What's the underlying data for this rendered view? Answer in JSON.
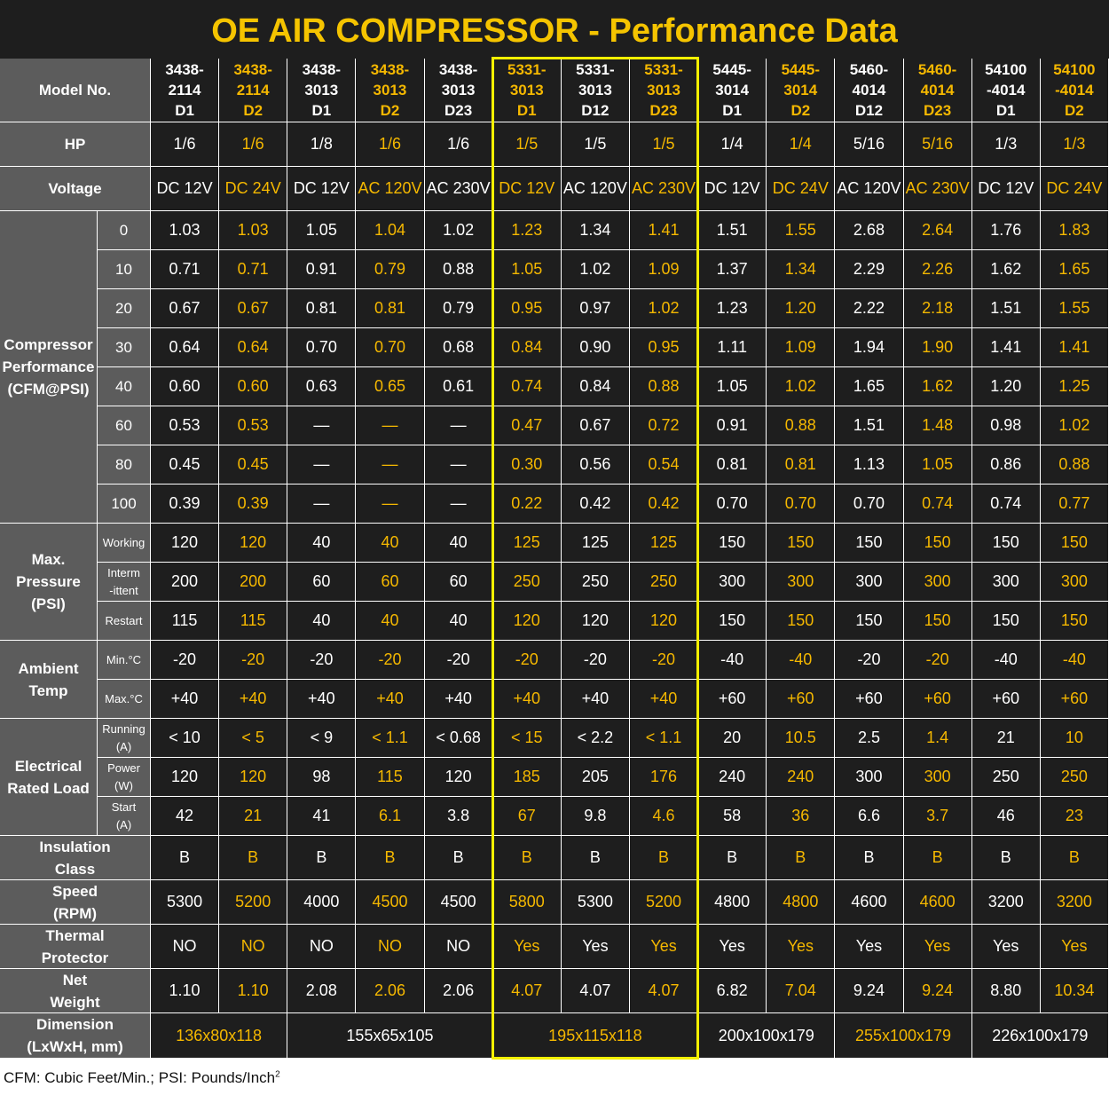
{
  "title": "OE AIR COMPRESSOR - Performance Data",
  "accent_color": "#f5b800",
  "highlight_color": "#f5f000",
  "header_bg": "#5c5c5c",
  "table_bg": "#1e1e1e",
  "models": [
    [
      "3438-",
      "2114",
      "D1"
    ],
    [
      "3438-",
      "2114",
      "D2"
    ],
    [
      "3438-",
      "3013",
      "D1"
    ],
    [
      "3438-",
      "3013",
      "D2"
    ],
    [
      "3438-",
      "3013",
      "D23"
    ],
    [
      "5331-",
      "3013",
      "D1"
    ],
    [
      "5331-",
      "3013",
      "D12"
    ],
    [
      "5331-",
      "3013",
      "D23"
    ],
    [
      "5445-",
      "3014",
      "D1"
    ],
    [
      "5445-",
      "3014",
      "D2"
    ],
    [
      "5460-",
      "4014",
      "D12"
    ],
    [
      "5460-",
      "4014",
      "D23"
    ],
    [
      "54100",
      "-4014",
      "D1"
    ],
    [
      "54100",
      "-4014",
      "D2"
    ]
  ],
  "yellow_columns": [
    1,
    3,
    5,
    7,
    9,
    11,
    13
  ],
  "labels": {
    "model": "Model No.",
    "hp": "HP",
    "voltage": "Voltage",
    "compressor": [
      "Compressor",
      "Performance",
      "(CFM@PSI)"
    ],
    "pressure": [
      "Max.",
      "Pressure",
      "(PSI)"
    ],
    "ambient": [
      "Ambient",
      "Temp"
    ],
    "electrical": [
      "Electrical",
      "Rated Load"
    ],
    "insulation": [
      "Insulation",
      "Class"
    ],
    "speed": [
      "Speed",
      "(RPM)"
    ],
    "thermal": [
      "Thermal",
      "Protector"
    ],
    "weight": [
      "Net",
      "Weight"
    ],
    "dimension": [
      "Dimension",
      "(LxWxH, mm)"
    ]
  },
  "hp": [
    "1/6",
    "1/6",
    "1/8",
    "1/6",
    "1/6",
    "1/5",
    "1/5",
    "1/5",
    "1/4",
    "1/4",
    "5/16",
    "5/16",
    "1/3",
    "1/3"
  ],
  "voltage": [
    "DC 12V",
    "DC 24V",
    "DC 12V",
    "AC 120V",
    "AC 230V",
    "DC 12V",
    "AC 120V",
    "AC 230V",
    "DC 12V",
    "DC 24V",
    "AC 120V",
    "AC 230V",
    "DC 12V",
    "DC 24V"
  ],
  "performance": [
    {
      "psi": "0",
      "values": [
        "1.03",
        "1.03",
        "1.05",
        "1.04",
        "1.02",
        "1.23",
        "1.34",
        "1.41",
        "1.51",
        "1.55",
        "2.68",
        "2.64",
        "1.76",
        "1.83"
      ]
    },
    {
      "psi": "10",
      "values": [
        "0.71",
        "0.71",
        "0.91",
        "0.79",
        "0.88",
        "1.05",
        "1.02",
        "1.09",
        "1.37",
        "1.34",
        "2.29",
        "2.26",
        "1.62",
        "1.65"
      ]
    },
    {
      "psi": "20",
      "values": [
        "0.67",
        "0.67",
        "0.81",
        "0.81",
        "0.79",
        "0.95",
        "0.97",
        "1.02",
        "1.23",
        "1.20",
        "2.22",
        "2.18",
        "1.51",
        "1.55"
      ]
    },
    {
      "psi": "30",
      "values": [
        "0.64",
        "0.64",
        "0.70",
        "0.70",
        "0.68",
        "0.84",
        "0.90",
        "0.95",
        "1.11",
        "1.09",
        "1.94",
        "1.90",
        "1.41",
        "1.41"
      ]
    },
    {
      "psi": "40",
      "values": [
        "0.60",
        "0.60",
        "0.63",
        "0.65",
        "0.61",
        "0.74",
        "0.84",
        "0.88",
        "1.05",
        "1.02",
        "1.65",
        "1.62",
        "1.20",
        "1.25"
      ]
    },
    {
      "psi": "60",
      "values": [
        "0.53",
        "0.53",
        "—",
        "—",
        "—",
        "0.47",
        "0.67",
        "0.72",
        "0.91",
        "0.88",
        "1.51",
        "1.48",
        "0.98",
        "1.02"
      ]
    },
    {
      "psi": "80",
      "values": [
        "0.45",
        "0.45",
        "—",
        "—",
        "—",
        "0.30",
        "0.56",
        "0.54",
        "0.81",
        "0.81",
        "1.13",
        "1.05",
        "0.86",
        "0.88"
      ]
    },
    {
      "psi": "100",
      "values": [
        "0.39",
        "0.39",
        "—",
        "—",
        "—",
        "0.22",
        "0.42",
        "0.42",
        "0.70",
        "0.70",
        "0.70",
        "0.74",
        "0.74",
        "0.77"
      ]
    }
  ],
  "pressure": [
    {
      "label": [
        "Working"
      ],
      "values": [
        "120",
        "120",
        "40",
        "40",
        "40",
        "125",
        "125",
        "125",
        "150",
        "150",
        "150",
        "150",
        "150",
        "150"
      ]
    },
    {
      "label": [
        "Interm",
        "-ittent"
      ],
      "values": [
        "200",
        "200",
        "60",
        "60",
        "60",
        "250",
        "250",
        "250",
        "300",
        "300",
        "300",
        "300",
        "300",
        "300"
      ]
    },
    {
      "label": [
        "Restart"
      ],
      "values": [
        "115",
        "115",
        "40",
        "40",
        "40",
        "120",
        "120",
        "120",
        "150",
        "150",
        "150",
        "150",
        "150",
        "150"
      ]
    }
  ],
  "ambient": [
    {
      "label": [
        "Min.°C"
      ],
      "values": [
        "-20",
        "-20",
        "-20",
        "-20",
        "-20",
        "-20",
        "-20",
        "-20",
        "-40",
        "-40",
        "-20",
        "-20",
        "-40",
        "-40"
      ]
    },
    {
      "label": [
        "Max.°C"
      ],
      "values": [
        "+40",
        "+40",
        "+40",
        "+40",
        "+40",
        "+40",
        "+40",
        "+40",
        "+60",
        "+60",
        "+60",
        "+60",
        "+60",
        "+60"
      ]
    }
  ],
  "electrical": [
    {
      "label": [
        "Running",
        "(A)"
      ],
      "values": [
        "< 10",
        "< 5",
        "< 9",
        "< 1.1",
        "< 0.68",
        "< 15",
        "< 2.2",
        "< 1.1",
        "20",
        "10.5",
        "2.5",
        "1.4",
        "21",
        "10"
      ]
    },
    {
      "label": [
        "Power",
        "(W)"
      ],
      "values": [
        "120",
        "120",
        "98",
        "115",
        "120",
        "185",
        "205",
        "176",
        "240",
        "240",
        "300",
        "300",
        "250",
        "250"
      ]
    },
    {
      "label": [
        "Start",
        "(A)"
      ],
      "values": [
        "42",
        "21",
        "41",
        "6.1",
        "3.8",
        "67",
        "9.8",
        "4.6",
        "58",
        "36",
        "6.6",
        "3.7",
        "46",
        "23"
      ]
    }
  ],
  "insulation": [
    "B",
    "B",
    "B",
    "B",
    "B",
    "B",
    "B",
    "B",
    "B",
    "B",
    "B",
    "B",
    "B",
    "B"
  ],
  "speed": [
    "5300",
    "5200",
    "4000",
    "4500",
    "4500",
    "5800",
    "5300",
    "5200",
    "4800",
    "4800",
    "4600",
    "4600",
    "3200",
    "3200"
  ],
  "thermal": [
    "NO",
    "NO",
    "NO",
    "NO",
    "NO",
    "Yes",
    "Yes",
    "Yes",
    "Yes",
    "Yes",
    "Yes",
    "Yes",
    "Yes",
    "Yes"
  ],
  "weight": [
    "1.10",
    "1.10",
    "2.08",
    "2.06",
    "2.06",
    "4.07",
    "4.07",
    "4.07",
    "6.82",
    "7.04",
    "9.24",
    "9.24",
    "8.80",
    "10.34"
  ],
  "dimensions": [
    {
      "value": "136x80x118",
      "span": 2,
      "accent": true
    },
    {
      "value": "155x65x105",
      "span": 3,
      "accent": false
    },
    {
      "value": "195x115x118",
      "span": 3,
      "accent": true
    },
    {
      "value": "200x100x179",
      "span": 2,
      "accent": false
    },
    {
      "value": "255x100x179",
      "span": 2,
      "accent": true
    },
    {
      "value": "226x100x179",
      "span": 2,
      "accent": false
    }
  ],
  "footnote": {
    "text": "CFM: Cubic Feet/Min.;  PSI: Pounds/Inch",
    "sup": "2"
  }
}
